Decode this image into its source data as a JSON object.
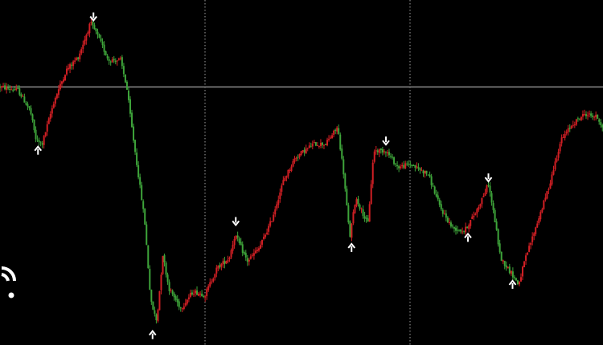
{
  "chart_data": {
    "type": "candlestick",
    "title": "",
    "xlabel": "",
    "ylabel": "",
    "ylim": [
      0,
      100
    ],
    "x_range": [
      0,
      100
    ],
    "grid": false,
    "background": "#000000",
    "colors": {
      "up": "#d11f24",
      "down": "#3ea43a",
      "arrow": "#ffffff",
      "hline": "#8a8a8a",
      "vline": "#a0a0a0"
    },
    "horizontal_line": {
      "value": 76
    },
    "vertical_separators": [
      34,
      68
    ],
    "price_path": [
      [
        0,
        76
      ],
      [
        3,
        75
      ],
      [
        5,
        69
      ],
      [
        6,
        60
      ],
      [
        7,
        59
      ],
      [
        9,
        72
      ],
      [
        11,
        81
      ],
      [
        13,
        85
      ],
      [
        15,
        95
      ],
      [
        16,
        92
      ],
      [
        18,
        84
      ],
      [
        20,
        84
      ],
      [
        21,
        76
      ],
      [
        22,
        62
      ],
      [
        24,
        36
      ],
      [
        25,
        12
      ],
      [
        26,
        6
      ],
      [
        27,
        26
      ],
      [
        28,
        16
      ],
      [
        30,
        10
      ],
      [
        32,
        15
      ],
      [
        34,
        14
      ],
      [
        36,
        22
      ],
      [
        38,
        25
      ],
      [
        39,
        32
      ],
      [
        41,
        24
      ],
      [
        43,
        28
      ],
      [
        45,
        36
      ],
      [
        47,
        48
      ],
      [
        49,
        55
      ],
      [
        52,
        59
      ],
      [
        54,
        59
      ],
      [
        56,
        64
      ],
      [
        57,
        50
      ],
      [
        58,
        31
      ],
      [
        59,
        43
      ],
      [
        61,
        35
      ],
      [
        62,
        57
      ],
      [
        64,
        57
      ],
      [
        66,
        52
      ],
      [
        68,
        53
      ],
      [
        71,
        50
      ],
      [
        73,
        40
      ],
      [
        75,
        34
      ],
      [
        77,
        33
      ],
      [
        79,
        39
      ],
      [
        81,
        47
      ],
      [
        82,
        37
      ],
      [
        83,
        25
      ],
      [
        85,
        20
      ],
      [
        86,
        17
      ],
      [
        87,
        24
      ],
      [
        89,
        35
      ],
      [
        91,
        46
      ],
      [
        93,
        60
      ],
      [
        95,
        65
      ],
      [
        97,
        68
      ],
      [
        99,
        67
      ],
      [
        100,
        64
      ]
    ],
    "arrows": [
      {
        "x": 6.3,
        "y": 57,
        "dir": "up"
      },
      {
        "x": 15.5,
        "y": 97,
        "dir": "down"
      },
      {
        "x": 25.3,
        "y": 2,
        "dir": "up"
      },
      {
        "x": 39.1,
        "y": 36,
        "dir": "down"
      },
      {
        "x": 58.3,
        "y": 28,
        "dir": "up"
      },
      {
        "x": 64.0,
        "y": 60,
        "dir": "down"
      },
      {
        "x": 77.6,
        "y": 31,
        "dir": "up"
      },
      {
        "x": 81.0,
        "y": 49,
        "dir": "down"
      },
      {
        "x": 85.0,
        "y": 17,
        "dir": "up"
      }
    ]
  },
  "side_icon": "refresh-partial-icon"
}
